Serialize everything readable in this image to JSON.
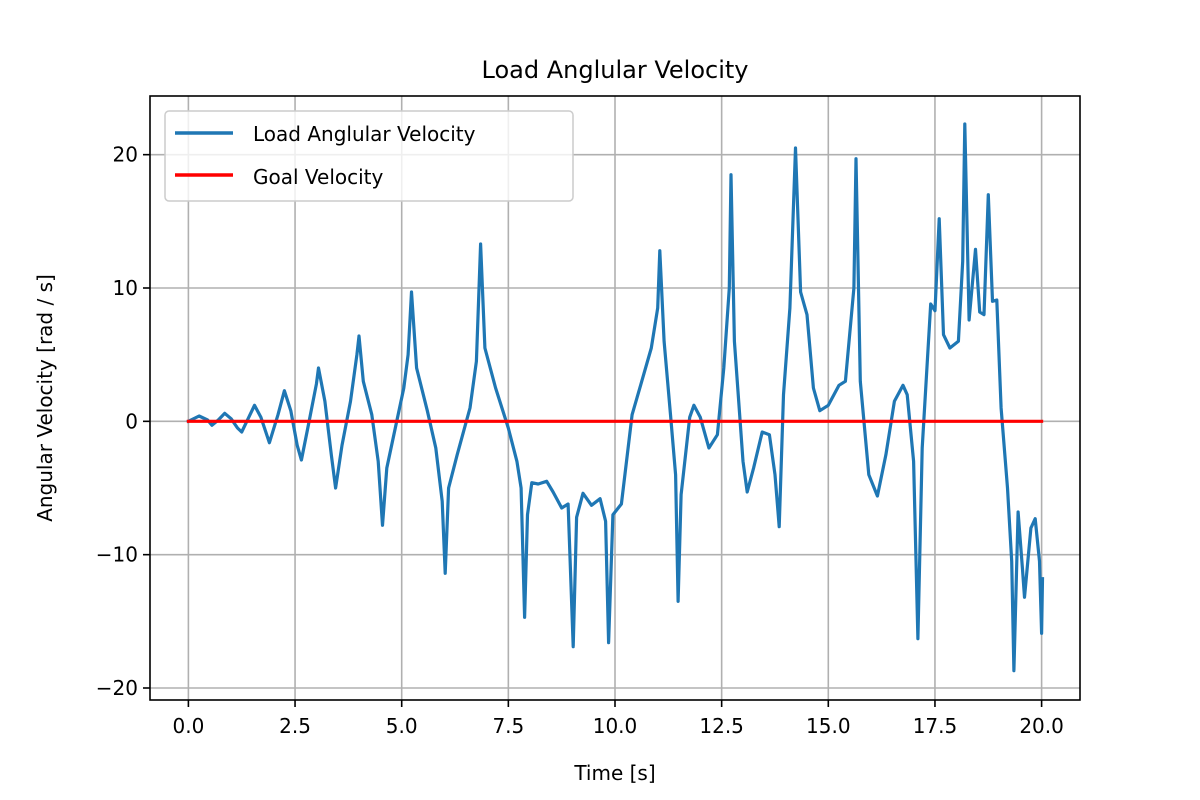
{
  "chart_data": {
    "type": "line",
    "title": "Load Anglular Velocity",
    "xlabel": "Time [s]",
    "ylabel": "Angular Velocity [rad / s]",
    "xlim": [
      -0.9,
      20.9
    ],
    "ylim": [
      -20.9,
      24.4
    ],
    "xticks": [
      0.0,
      2.5,
      5.0,
      7.5,
      10.0,
      12.5,
      15.0,
      17.5,
      20.0
    ],
    "xtick_labels": [
      "0.0",
      "2.5",
      "5.0",
      "7.5",
      "10.0",
      "12.5",
      "15.0",
      "17.5",
      "20.0"
    ],
    "yticks": [
      -20,
      -10,
      0,
      10,
      20
    ],
    "ytick_labels": [
      "−20",
      "−10",
      "0",
      "10",
      "20"
    ],
    "grid": true,
    "legend_position": "top-left",
    "series": [
      {
        "name": "Load Anglular Velocity",
        "color": "#1f77b4",
        "points": [
          [
            0.0,
            0.0
          ],
          [
            0.25,
            0.4
          ],
          [
            0.45,
            0.1
          ],
          [
            0.55,
            -0.3
          ],
          [
            0.7,
            0.1
          ],
          [
            0.85,
            0.6
          ],
          [
            1.0,
            0.2
          ],
          [
            1.15,
            -0.5
          ],
          [
            1.25,
            -0.8
          ],
          [
            1.4,
            0.2
          ],
          [
            1.55,
            1.2
          ],
          [
            1.7,
            0.3
          ],
          [
            1.9,
            -1.6
          ],
          [
            2.1,
            0.5
          ],
          [
            2.25,
            2.3
          ],
          [
            2.4,
            0.8
          ],
          [
            2.55,
            -1.8
          ],
          [
            2.65,
            -2.9
          ],
          [
            2.8,
            -0.5
          ],
          [
            3.0,
            2.8
          ],
          [
            3.05,
            4.0
          ],
          [
            3.2,
            1.5
          ],
          [
            3.35,
            -2.5
          ],
          [
            3.45,
            -5.0
          ],
          [
            3.6,
            -1.8
          ],
          [
            3.8,
            1.5
          ],
          [
            3.95,
            5.0
          ],
          [
            4.0,
            6.4
          ],
          [
            4.1,
            3.0
          ],
          [
            4.3,
            0.5
          ],
          [
            4.45,
            -3.0
          ],
          [
            4.55,
            -7.8
          ],
          [
            4.65,
            -3.5
          ],
          [
            4.85,
            -0.5
          ],
          [
            5.05,
            2.5
          ],
          [
            5.15,
            5.0
          ],
          [
            5.23,
            9.7
          ],
          [
            5.35,
            4.0
          ],
          [
            5.6,
            0.8
          ],
          [
            5.8,
            -2.0
          ],
          [
            5.95,
            -6.0
          ],
          [
            6.02,
            -11.4
          ],
          [
            6.1,
            -5.0
          ],
          [
            6.3,
            -2.5
          ],
          [
            6.6,
            1.0
          ],
          [
            6.75,
            4.5
          ],
          [
            6.85,
            13.3
          ],
          [
            6.95,
            5.5
          ],
          [
            7.2,
            2.5
          ],
          [
            7.5,
            -0.5
          ],
          [
            7.7,
            -3.0
          ],
          [
            7.8,
            -5.0
          ],
          [
            7.88,
            -14.7
          ],
          [
            7.95,
            -7.0
          ],
          [
            8.05,
            -4.6
          ],
          [
            8.2,
            -4.7
          ],
          [
            8.4,
            -4.5
          ],
          [
            8.55,
            -5.3
          ],
          [
            8.75,
            -6.5
          ],
          [
            8.9,
            -6.2
          ],
          [
            9.02,
            -16.9
          ],
          [
            9.1,
            -7.2
          ],
          [
            9.25,
            -5.4
          ],
          [
            9.45,
            -6.3
          ],
          [
            9.65,
            -5.8
          ],
          [
            9.78,
            -7.5
          ],
          [
            9.85,
            -16.6
          ],
          [
            9.95,
            -7.0
          ],
          [
            10.15,
            -6.2
          ],
          [
            10.4,
            0.5
          ],
          [
            10.6,
            2.7
          ],
          [
            10.85,
            5.5
          ],
          [
            11.0,
            8.5
          ],
          [
            11.05,
            12.8
          ],
          [
            11.15,
            6.0
          ],
          [
            11.3,
            0.5
          ],
          [
            11.42,
            -4.0
          ],
          [
            11.48,
            -13.5
          ],
          [
            11.55,
            -5.5
          ],
          [
            11.75,
            0.3
          ],
          [
            11.85,
            1.2
          ],
          [
            12.0,
            0.3
          ],
          [
            12.2,
            -2.0
          ],
          [
            12.4,
            -1.0
          ],
          [
            12.55,
            4.0
          ],
          [
            12.68,
            10.0
          ],
          [
            12.72,
            18.5
          ],
          [
            12.8,
            6.0
          ],
          [
            13.0,
            -3.0
          ],
          [
            13.1,
            -5.3
          ],
          [
            13.25,
            -3.5
          ],
          [
            13.45,
            -0.8
          ],
          [
            13.62,
            -1.0
          ],
          [
            13.75,
            -4.0
          ],
          [
            13.85,
            -7.9
          ],
          [
            13.95,
            2.0
          ],
          [
            14.1,
            8.5
          ],
          [
            14.23,
            20.5
          ],
          [
            14.35,
            9.7
          ],
          [
            14.5,
            8.0
          ],
          [
            14.65,
            2.5
          ],
          [
            14.8,
            0.8
          ],
          [
            15.0,
            1.2
          ],
          [
            15.25,
            2.7
          ],
          [
            15.4,
            3.0
          ],
          [
            15.6,
            10.0
          ],
          [
            15.65,
            19.7
          ],
          [
            15.75,
            3.0
          ],
          [
            15.95,
            -4.0
          ],
          [
            16.15,
            -5.6
          ],
          [
            16.35,
            -2.5
          ],
          [
            16.55,
            1.5
          ],
          [
            16.75,
            2.7
          ],
          [
            16.85,
            2.0
          ],
          [
            17.0,
            -3.0
          ],
          [
            17.1,
            -16.3
          ],
          [
            17.2,
            -2.0
          ],
          [
            17.4,
            8.8
          ],
          [
            17.5,
            8.3
          ],
          [
            17.6,
            15.2
          ],
          [
            17.7,
            6.5
          ],
          [
            17.85,
            5.5
          ],
          [
            18.05,
            6.0
          ],
          [
            18.15,
            12.0
          ],
          [
            18.2,
            22.3
          ],
          [
            18.3,
            7.6
          ],
          [
            18.45,
            12.9
          ],
          [
            18.55,
            8.2
          ],
          [
            18.65,
            8.0
          ],
          [
            18.75,
            17.0
          ],
          [
            18.85,
            9.0
          ],
          [
            18.95,
            9.1
          ],
          [
            19.05,
            1.0
          ],
          [
            19.2,
            -5.0
          ],
          [
            19.3,
            -10.5
          ],
          [
            19.35,
            -18.7
          ],
          [
            19.45,
            -6.8
          ],
          [
            19.55,
            -11.0
          ],
          [
            19.6,
            -13.2
          ],
          [
            19.75,
            -8.0
          ],
          [
            19.85,
            -7.3
          ],
          [
            19.95,
            -10.5
          ],
          [
            20.0,
            -15.9
          ],
          [
            20.02,
            -11.8
          ]
        ]
      },
      {
        "name": "Goal Velocity",
        "color": "#ff0000",
        "points": [
          [
            0.0,
            0.0
          ],
          [
            20.0,
            0.0
          ]
        ]
      }
    ]
  }
}
